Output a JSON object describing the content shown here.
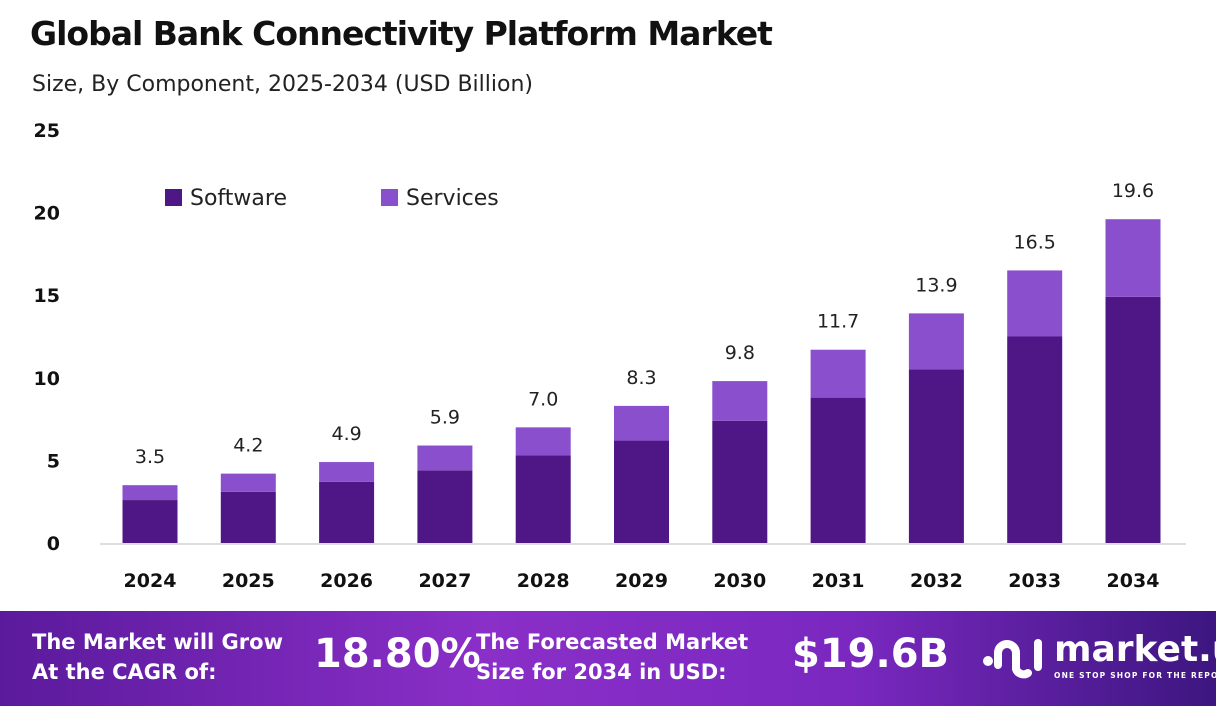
{
  "header": {
    "title": "Global Bank Connectivity Platform Market",
    "subtitle": "Size, By Component, 2025-2034 (USD Billion)"
  },
  "chart_data": {
    "type": "bar",
    "stacked": true,
    "categories": [
      "2024",
      "2025",
      "2026",
      "2027",
      "2028",
      "2029",
      "2030",
      "2031",
      "2032",
      "2033",
      "2034"
    ],
    "series": [
      {
        "name": "Software",
        "color": "#4f1785",
        "values": [
          2.6,
          3.1,
          3.7,
          4.4,
          5.3,
          6.2,
          7.4,
          8.8,
          10.5,
          12.5,
          14.9
        ]
      },
      {
        "name": "Services",
        "color": "#8a4fcc",
        "values": [
          0.9,
          1.1,
          1.2,
          1.5,
          1.7,
          2.1,
          2.4,
          2.9,
          3.4,
          4.0,
          4.7
        ]
      }
    ],
    "totals": [
      "3.5",
      "4.2",
      "4.9",
      "5.9",
      "7.0",
      "8.3",
      "9.8",
      "11.7",
      "13.9",
      "16.5",
      "19.6"
    ],
    "ylim": [
      0,
      25
    ],
    "yticks": [
      "0",
      "5",
      "10",
      "15",
      "20",
      "25"
    ],
    "grid": false,
    "legend": "top-left"
  },
  "footer": {
    "cagr_label_1": "The Market will Grow",
    "cagr_label_2": "At the CAGR of:",
    "cagr_value": "18.80%",
    "forecast_label_1": "The Forecasted Market",
    "forecast_label_2": "Size for 2034 in USD:",
    "forecast_value": "$19.6B",
    "logo_name": "market.us",
    "logo_tagline": "ONE STOP SHOP FOR THE REPORTS"
  }
}
